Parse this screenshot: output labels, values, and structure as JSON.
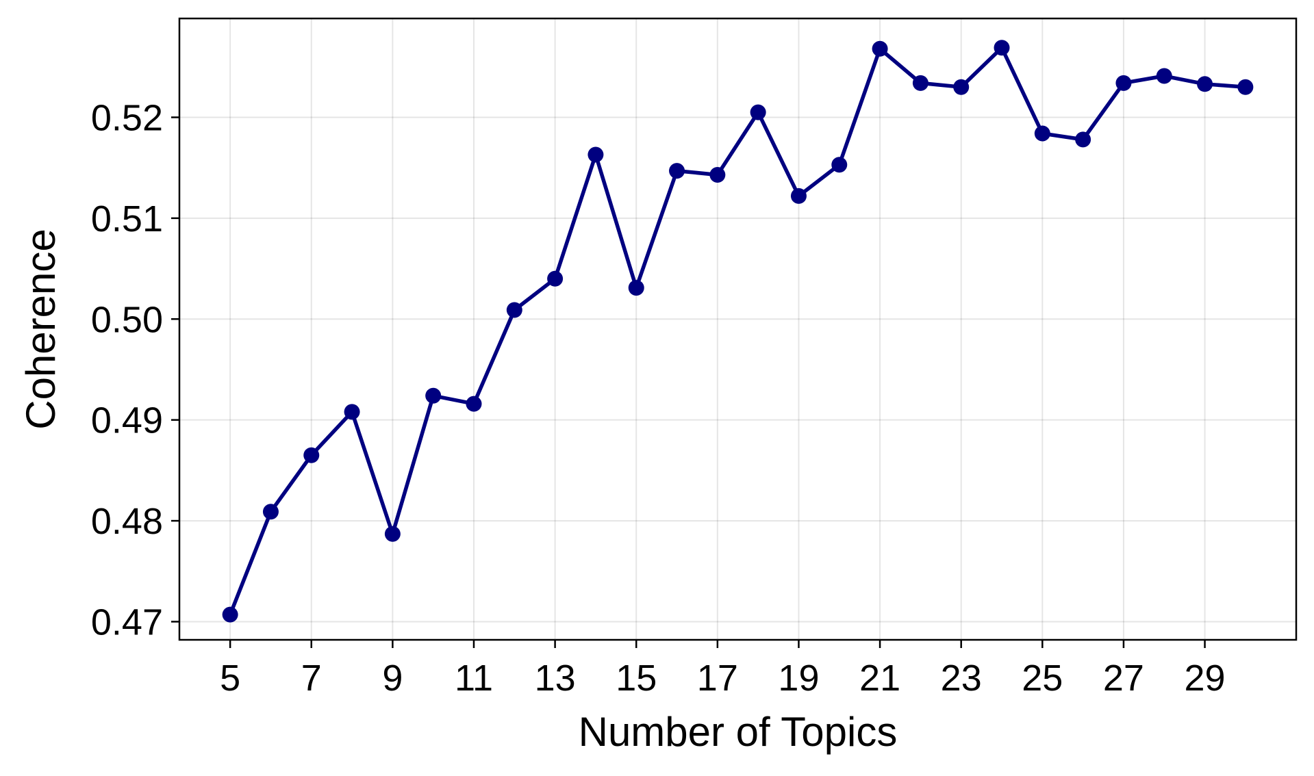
{
  "chart_data": {
    "type": "line",
    "title": "",
    "xlabel": "Number of Topics",
    "ylabel": "Coherence",
    "x": [
      5,
      6,
      7,
      8,
      9,
      10,
      11,
      12,
      13,
      14,
      15,
      16,
      17,
      18,
      19,
      20,
      21,
      22,
      23,
      24,
      25,
      26,
      27,
      28,
      29,
      30
    ],
    "series": [
      {
        "values": [
          0.4707,
          0.4809,
          0.4865,
          0.4908,
          0.4787,
          0.4924,
          0.4916,
          0.5009,
          0.504,
          0.5163,
          0.5031,
          0.5147,
          0.5143,
          0.5205,
          0.5122,
          0.5153,
          0.5268,
          0.5234,
          0.523,
          0.5269,
          0.5184,
          0.5178,
          0.5234,
          0.5241,
          0.5233,
          0.523
        ],
        "color": "#000080"
      }
    ],
    "xticks": [
      5,
      7,
      9,
      11,
      13,
      15,
      17,
      19,
      21,
      23,
      25,
      27,
      29
    ],
    "xtick_labels": [
      "5",
      "7",
      "9",
      "11",
      "13",
      "15",
      "17",
      "19",
      "21",
      "23",
      "25",
      "27",
      "29"
    ],
    "yticks": [
      0.47,
      0.48,
      0.49,
      0.5,
      0.51,
      0.52
    ],
    "ytick_labels": [
      "0.47",
      "0.48",
      "0.49",
      "0.50",
      "0.51",
      "0.52"
    ],
    "xlim": [
      3.75,
      31.25
    ],
    "ylim": [
      0.4682,
      0.5298
    ],
    "grid": true,
    "marker": "circle"
  }
}
